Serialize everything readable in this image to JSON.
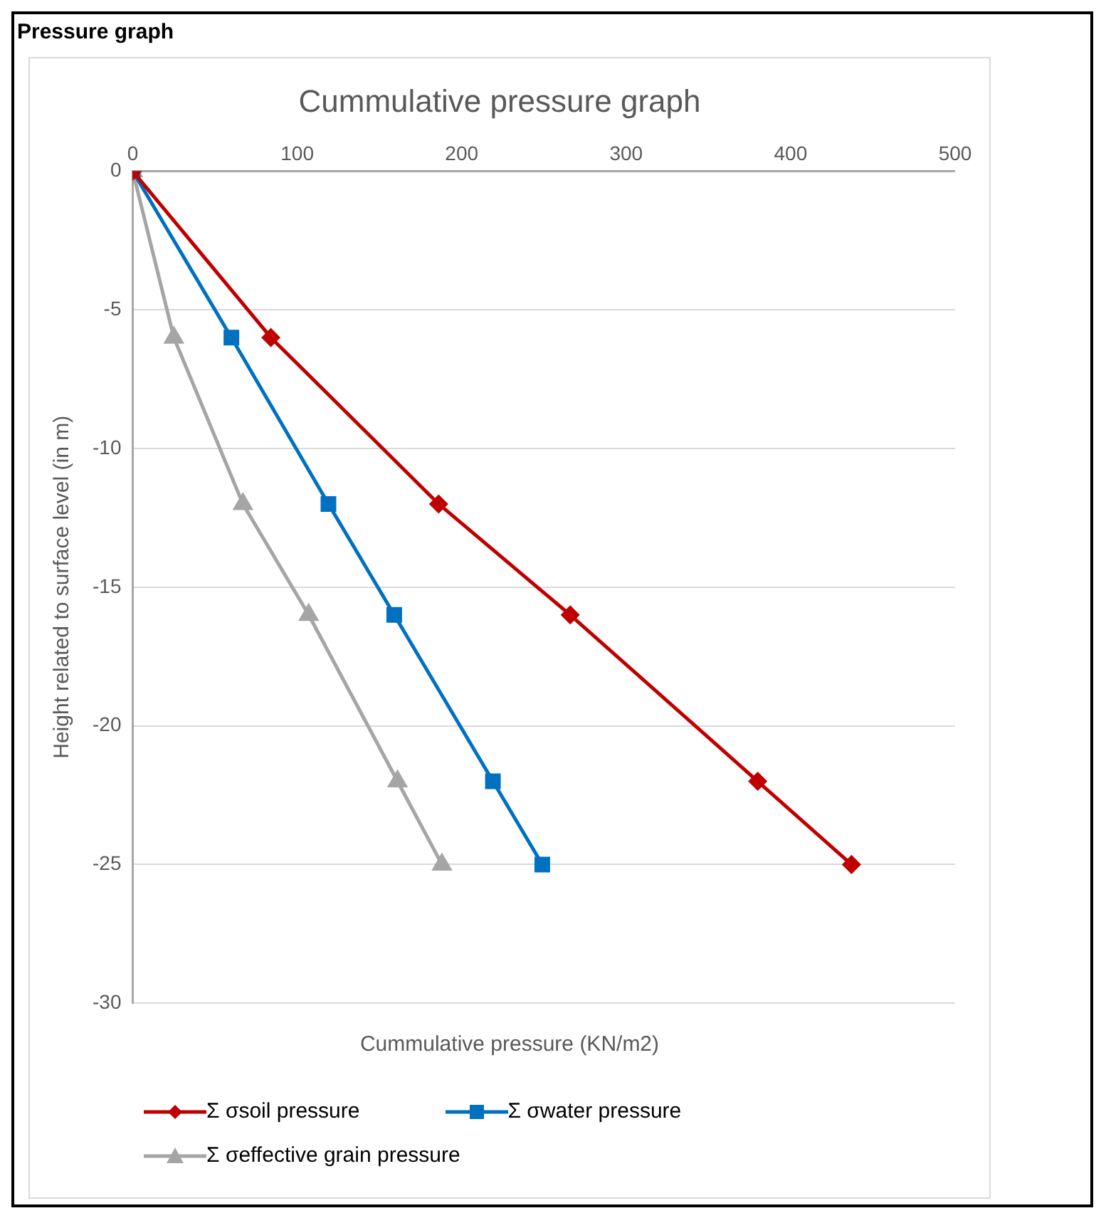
{
  "chart_data": {
    "type": "line",
    "title": "Cummulative pressure graph",
    "xlabel": "Cummulative pressure (KN/m2)",
    "ylabel": "Height related to surface level (in m)",
    "annotations": [
      "Pressure graph"
    ],
    "xlim": [
      0,
      500
    ],
    "xticks": [
      0,
      100,
      200,
      300,
      400,
      500
    ],
    "ylim": [
      -30,
      0
    ],
    "yticks": [
      -30,
      -25,
      -20,
      -15,
      -10,
      -5,
      0
    ],
    "grid": "y",
    "legend": "bottom",
    "series": [
      {
        "name": "Σ σsoil pressure",
        "color": "#c00000",
        "marker": "diamond",
        "x": [
          0,
          84,
          186,
          266,
          380,
          437
        ],
        "values": [
          0,
          -6,
          -12,
          -16,
          -22,
          -25
        ]
      },
      {
        "name": "Σ σwater pressure",
        "color": "#0070c0",
        "marker": "square",
        "x": [
          0,
          60,
          119,
          159,
          219,
          249
        ],
        "values": [
          0,
          -6,
          -12,
          -16,
          -22,
          -25
        ]
      },
      {
        "name": "Σ σeffective grain pressure",
        "color": "#a5a5a5",
        "marker": "triangle",
        "x": [
          0,
          25,
          67,
          107,
          161,
          188
        ],
        "values": [
          0,
          -6,
          -12,
          -16,
          -22,
          -25
        ]
      }
    ]
  }
}
